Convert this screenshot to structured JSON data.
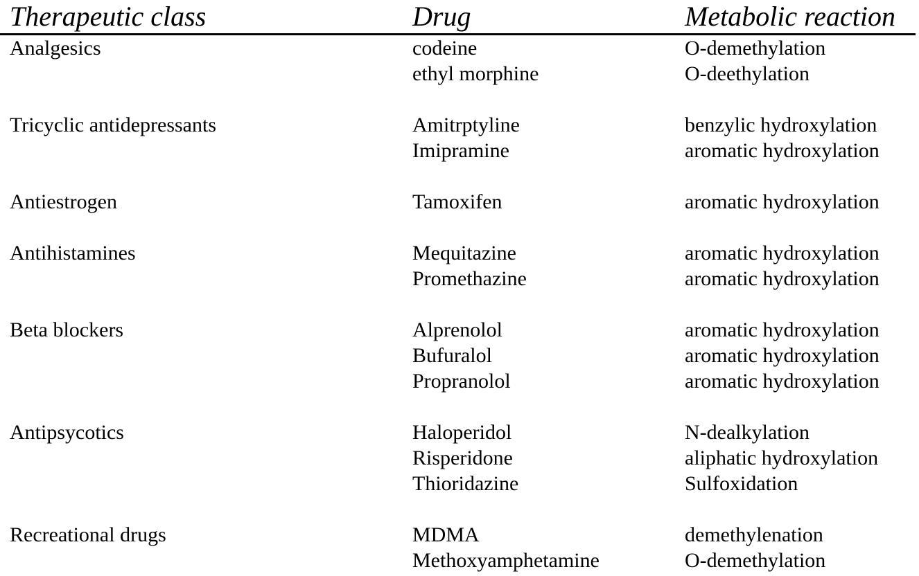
{
  "colors": {
    "background": "#ffffff",
    "text": "#000000",
    "header_rule": "#000000"
  },
  "table": {
    "headers": [
      "Therapeutic class",
      "Drug",
      "Metabolic reaction"
    ],
    "sections": [
      {
        "class": "Analgesics",
        "rows": [
          {
            "drug": "codeine",
            "reaction": "O-demethylation"
          },
          {
            "drug": "ethyl morphine",
            "reaction": "O-deethylation"
          }
        ]
      },
      {
        "class": "Tricyclic antidepressants",
        "rows": [
          {
            "drug": "Amitrptyline",
            "reaction": "benzylic hydroxylation"
          },
          {
            "drug": "Imipramine",
            "reaction": "aromatic hydroxylation"
          }
        ]
      },
      {
        "class": "Antiestrogen",
        "rows": [
          {
            "drug": "Tamoxifen",
            "reaction": "aromatic hydroxylation"
          }
        ]
      },
      {
        "class": "Antihistamines",
        "rows": [
          {
            "drug": "Mequitazine",
            "reaction": "aromatic hydroxylation"
          },
          {
            "drug": "Promethazine",
            "reaction": "aromatic hydroxylation"
          }
        ]
      },
      {
        "class": "Beta blockers",
        "rows": [
          {
            "drug": "Alprenolol",
            "reaction": "aromatic hydroxylation"
          },
          {
            "drug": "Bufuralol",
            "reaction": "aromatic hydroxylation"
          },
          {
            "drug": "Propranolol",
            "reaction": "aromatic hydroxylation"
          }
        ]
      },
      {
        "class": "Antipsycotics",
        "rows": [
          {
            "drug": "Haloperidol",
            "reaction": "N-dealkylation"
          },
          {
            "drug": "Risperidone",
            "reaction": "aliphatic hydroxylation"
          },
          {
            "drug": "Thioridazine",
            "reaction": "Sulfoxidation"
          }
        ]
      },
      {
        "class": "Recreational drugs",
        "rows": [
          {
            "drug": "MDMA",
            "reaction": "demethylenation"
          },
          {
            "drug": "Methoxyamphetamine",
            "reaction": "O-demethylation"
          }
        ]
      }
    ]
  }
}
